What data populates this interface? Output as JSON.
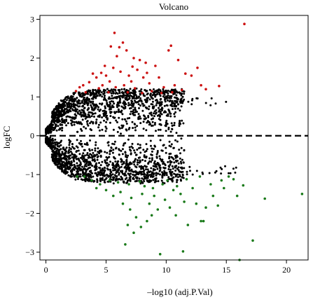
{
  "chart_data": {
    "type": "scatter",
    "title": "Volcano",
    "xlabel": "–log10 (adj.P.Val)",
    "ylabel": "logFC",
    "xlim": [
      -0.5,
      21.8
    ],
    "ylim": [
      -3.2,
      3.1
    ],
    "x_ticks": [
      0,
      5,
      10,
      15,
      20
    ],
    "x_tick_labels": [
      "0",
      "5",
      "10",
      "15",
      "20"
    ],
    "y_ticks": [
      3,
      2,
      1,
      0,
      -1,
      -2,
      -3
    ],
    "y_tick_labels": [
      "3",
      "2",
      "1",
      "0",
      "−1",
      "−2",
      "−3"
    ],
    "grid": false,
    "legend": "none",
    "colors": {
      "up": "#cc1111",
      "down": "#1a7a1a",
      "not_significant": "#000000",
      "reference_line": "#000000"
    },
    "reference_line": {
      "axis": "y",
      "value": 0,
      "style": "dashed"
    },
    "series": [
      {
        "key": "up",
        "color": "#cc1111",
        "points": [
          [
            5.7,
            2.65
          ],
          [
            6.4,
            2.4
          ],
          [
            6.1,
            2.28
          ],
          [
            5.4,
            2.3
          ],
          [
            6.7,
            2.2
          ],
          [
            5.9,
            2.05
          ],
          [
            7.3,
            2.0
          ],
          [
            7.8,
            1.95
          ],
          [
            8.3,
            1.88
          ],
          [
            9.1,
            1.8
          ],
          [
            10.2,
            2.2
          ],
          [
            10.4,
            2.32
          ],
          [
            11.0,
            1.95
          ],
          [
            11.6,
            1.6
          ],
          [
            12.1,
            1.55
          ],
          [
            12.6,
            1.75
          ],
          [
            12.9,
            1.3
          ],
          [
            13.3,
            1.2
          ],
          [
            14.4,
            1.28
          ],
          [
            16.5,
            2.88
          ],
          [
            4.6,
            1.62
          ],
          [
            5.0,
            1.55
          ],
          [
            5.3,
            1.4
          ],
          [
            4.2,
            1.5
          ],
          [
            3.6,
            1.38
          ],
          [
            3.1,
            1.3
          ],
          [
            2.8,
            1.25
          ],
          [
            2.5,
            1.15
          ],
          [
            3.9,
            1.6
          ],
          [
            6.9,
            1.55
          ],
          [
            7.6,
            1.7
          ],
          [
            8.1,
            1.5
          ],
          [
            8.6,
            1.35
          ],
          [
            9.4,
            1.5
          ],
          [
            9.8,
            1.25
          ],
          [
            10.7,
            1.3
          ],
          [
            11.3,
            1.18
          ],
          [
            6.2,
            1.65
          ],
          [
            5.6,
            1.75
          ],
          [
            4.9,
            1.8
          ],
          [
            7.1,
            1.4
          ],
          [
            8.8,
            1.15
          ],
          [
            9.6,
            1.1
          ],
          [
            10.5,
            1.12
          ],
          [
            3.3,
            1.12
          ],
          [
            4.4,
            1.22
          ],
          [
            5.8,
            1.25
          ],
          [
            6.5,
            1.3
          ],
          [
            7.4,
            1.22
          ],
          [
            8.0,
            1.1
          ],
          [
            6.8,
            1.12
          ],
          [
            7.2,
            1.78
          ],
          [
            8.4,
            1.62
          ],
          [
            5.2,
            1.12
          ],
          [
            4.7,
            1.3
          ]
        ]
      },
      {
        "key": "down",
        "color": "#1a7a1a",
        "points": [
          [
            9.5,
            -3.05
          ],
          [
            11.4,
            -2.98
          ],
          [
            16.1,
            -3.2
          ],
          [
            17.2,
            -2.7
          ],
          [
            6.6,
            -2.8
          ],
          [
            7.3,
            -2.5
          ],
          [
            6.8,
            -2.3
          ],
          [
            7.9,
            -2.35
          ],
          [
            8.4,
            -2.2
          ],
          [
            7.5,
            -2.1
          ],
          [
            8.8,
            -2.05
          ],
          [
            9.3,
            -1.9
          ],
          [
            10.3,
            -1.85
          ],
          [
            11.5,
            -1.7
          ],
          [
            12.5,
            -1.75
          ],
          [
            13.3,
            -1.85
          ],
          [
            14.3,
            -1.8
          ],
          [
            15.9,
            -1.55
          ],
          [
            18.2,
            -1.62
          ],
          [
            21.3,
            -1.5
          ],
          [
            12.9,
            -2.2
          ],
          [
            13.1,
            -2.2
          ],
          [
            11.8,
            -2.3
          ],
          [
            10.8,
            -2.05
          ],
          [
            5.0,
            -1.4
          ],
          [
            4.5,
            -1.25
          ],
          [
            3.8,
            -1.15
          ],
          [
            3.2,
            -1.05
          ],
          [
            2.6,
            -1.05
          ],
          [
            5.6,
            -1.55
          ],
          [
            6.2,
            -1.45
          ],
          [
            7.1,
            -1.6
          ],
          [
            8.0,
            -1.5
          ],
          [
            8.9,
            -1.35
          ],
          [
            9.7,
            -1.25
          ],
          [
            10.6,
            -1.4
          ],
          [
            11.2,
            -1.5
          ],
          [
            12.2,
            -1.35
          ],
          [
            13.7,
            -1.25
          ],
          [
            14.6,
            -1.15
          ],
          [
            15.2,
            -1.05
          ],
          [
            16.4,
            -1.28
          ],
          [
            6.0,
            -1.2
          ],
          [
            6.9,
            -1.25
          ],
          [
            7.8,
            -1.18
          ],
          [
            8.6,
            -1.75
          ],
          [
            9.9,
            -1.65
          ],
          [
            10.1,
            -1.15
          ],
          [
            11.7,
            -1.12
          ],
          [
            12.8,
            -1.05
          ],
          [
            13.9,
            -1.55
          ],
          [
            14.8,
            -1.35
          ],
          [
            5.3,
            -1.15
          ],
          [
            4.2,
            -1.35
          ],
          [
            6.4,
            -1.75
          ],
          [
            7.0,
            -1.9
          ],
          [
            9.0,
            -1.55
          ],
          [
            8.2,
            -1.3
          ],
          [
            10.9,
            -1.3
          ],
          [
            15.6,
            -1.12
          ]
        ]
      }
    ]
  }
}
